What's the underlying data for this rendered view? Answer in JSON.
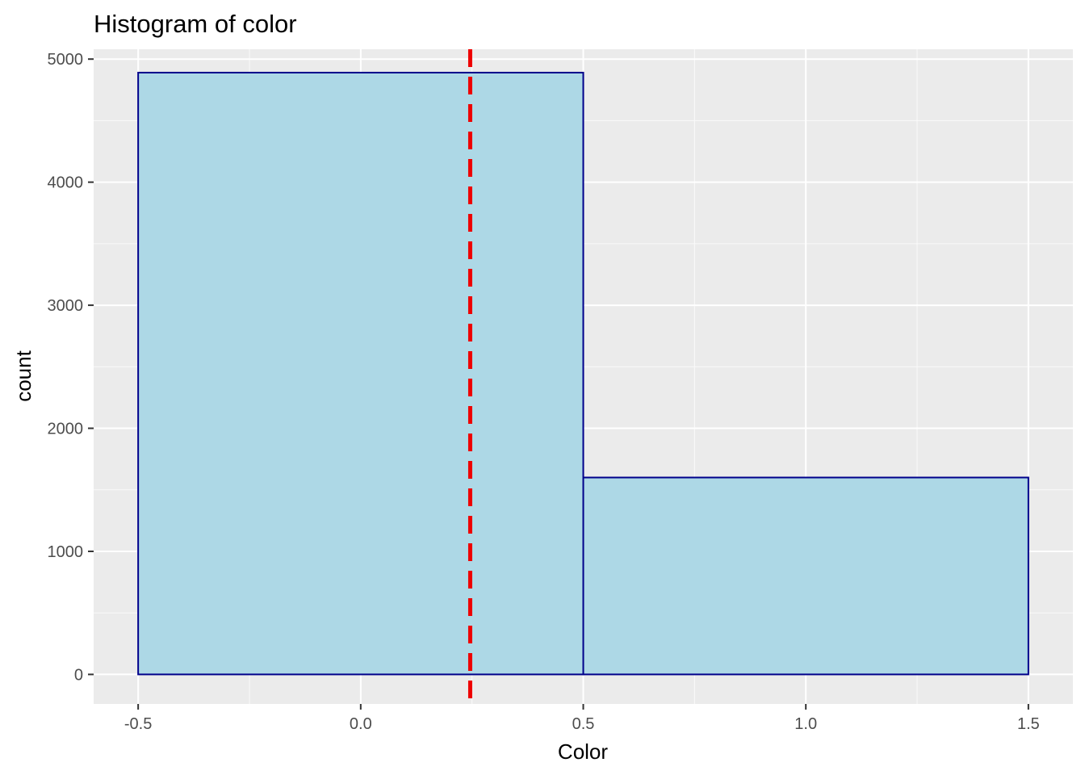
{
  "chart_data": {
    "type": "histogram",
    "title": "Histogram of color",
    "xlabel": "Color",
    "ylabel": "count",
    "xlim": [
      -0.6,
      1.6
    ],
    "ylim": [
      -240,
      5080
    ],
    "x_ticks": [
      -0.5,
      0.0,
      0.5,
      1.0,
      1.5
    ],
    "x_tick_labels": [
      "-0.5",
      "0.0",
      "0.5",
      "1.0",
      "1.5"
    ],
    "y_ticks": [
      0,
      1000,
      2000,
      3000,
      4000,
      5000
    ],
    "y_tick_labels": [
      "0",
      "1000",
      "2000",
      "3000",
      "4000",
      "5000"
    ],
    "bins": [
      {
        "x_start": -0.5,
        "x_end": 0.5,
        "count": 4890
      },
      {
        "x_start": 0.5,
        "x_end": 1.5,
        "count": 1600
      }
    ],
    "reference_line": {
      "x": 0.246,
      "style": "dashed",
      "color": "#ee0000"
    },
    "grid": true,
    "panel_background": "#ebebeb",
    "bar_fill": "#add8e6",
    "bar_outline": "#00008b"
  }
}
